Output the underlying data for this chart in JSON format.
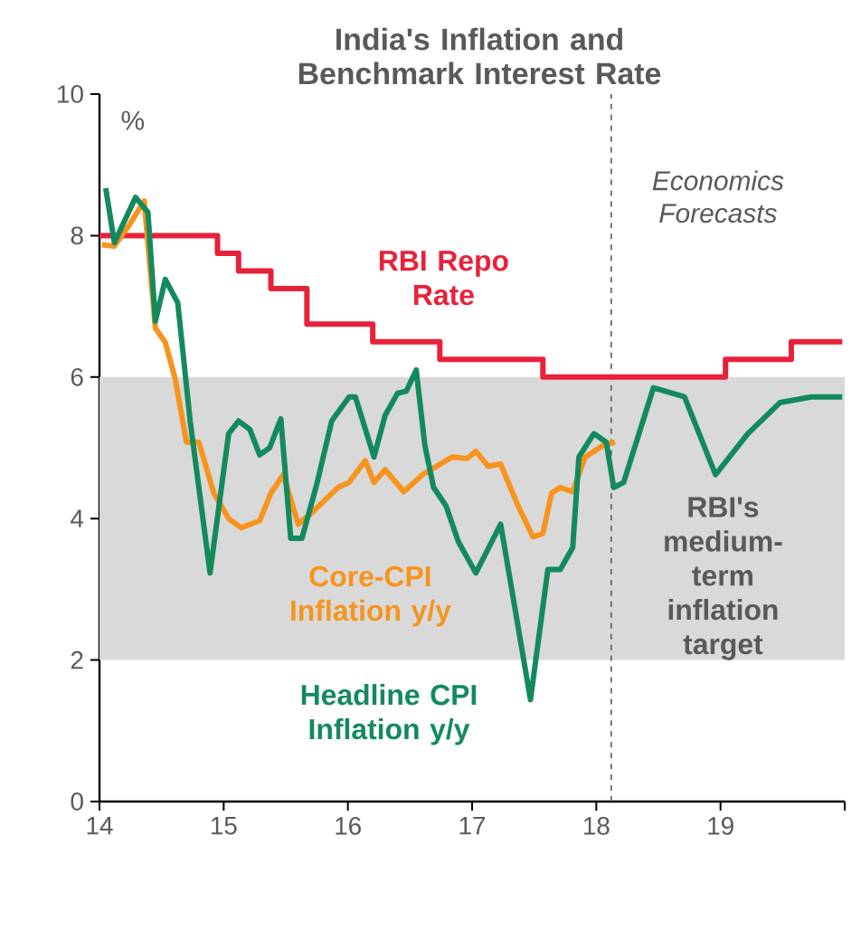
{
  "chart_data": {
    "type": "line",
    "title": "India's Inflation and Benchmark Interest Rate",
    "ylabel": "%",
    "xlim": [
      14,
      20
    ],
    "xticks": [
      14,
      15,
      16,
      17,
      18,
      19,
      {
        "value": 20,
        "label": null
      }
    ],
    "ylim": [
      0,
      10
    ],
    "yticks": [
      0,
      2,
      4,
      6,
      8,
      10
    ],
    "grid": false,
    "legend": false,
    "marker": "none",
    "line_style": "solid",
    "series": [
      {
        "name": "RBI Repo Rate",
        "type": "step",
        "color": "#e8213a",
        "x": [
          14,
          14.95,
          15.12,
          15.38,
          15.67,
          16.2,
          16.74,
          17.57,
          19.04,
          19.57,
          19.98
        ],
        "values": [
          8,
          7.75,
          7.5,
          7.25,
          6.75,
          6.5,
          6.25,
          6,
          6.25,
          6.5,
          6.5
        ]
      },
      {
        "name": "Core-CPI Inflation y/y",
        "color": "#f7941d",
        "x": [
          14.02,
          14.12,
          14.24,
          14.36,
          14.45,
          14.53,
          14.61,
          14.7,
          14.8,
          14.92,
          15.04,
          15.14,
          15.29,
          15.38,
          15.48,
          15.6,
          15.72,
          15.92,
          16.01,
          16.14,
          16.21,
          16.3,
          16.45,
          16.6,
          16.84,
          16.96,
          17.03,
          17.13,
          17.23,
          17.37,
          17.49,
          17.57,
          17.64,
          17.71,
          17.81,
          17.91,
          18.05,
          18.15
        ],
        "values": [
          7.87,
          7.85,
          8.15,
          8.49,
          6.69,
          6.49,
          5.97,
          5.08,
          5.08,
          4.36,
          4.0,
          3.87,
          3.97,
          4.36,
          4.62,
          3.92,
          4.1,
          4.44,
          4.51,
          4.82,
          4.51,
          4.69,
          4.38,
          4.62,
          4.87,
          4.85,
          4.95,
          4.74,
          4.77,
          4.18,
          3.74,
          3.79,
          4.36,
          4.44,
          4.38,
          4.87,
          5.03,
          5.08
        ]
      },
      {
        "name": "Headline CPI Inflation  y/y",
        "color": "#138a5e",
        "x": [
          14.05,
          14.12,
          14.29,
          14.39,
          14.45,
          14.53,
          14.63,
          14.73,
          14.89,
          15.04,
          15.12,
          15.21,
          15.29,
          15.37,
          15.46,
          15.54,
          15.63,
          15.75,
          15.87,
          16.01,
          16.06,
          16.21,
          16.3,
          16.4,
          16.47,
          16.55,
          16.62,
          16.69,
          16.79,
          16.89,
          17.03,
          17.23,
          17.47,
          17.61,
          17.71,
          17.81,
          17.86,
          17.98,
          18.08,
          18.14,
          18.22,
          18.46,
          18.71,
          18.96,
          19.22,
          19.48,
          19.73,
          19.98
        ],
        "values": [
          8.67,
          7.9,
          8.54,
          8.33,
          6.79,
          7.38,
          7.05,
          5.38,
          3.23,
          5.2,
          5.38,
          5.26,
          4.9,
          5.0,
          5.41,
          3.72,
          3.72,
          4.49,
          5.38,
          5.72,
          5.72,
          4.87,
          5.46,
          5.77,
          5.8,
          6.1,
          5.03,
          4.44,
          4.18,
          3.67,
          3.23,
          3.92,
          1.44,
          3.28,
          3.28,
          3.59,
          4.87,
          5.2,
          5.08,
          4.44,
          4.51,
          5.85,
          5.72,
          4.62,
          5.2,
          5.64,
          5.72,
          5.72
        ]
      }
    ],
    "ref_lines": [
      {
        "axis": "x",
        "value": 18.12,
        "label": "Economics Forecasts",
        "color": "#595959",
        "line_style": "dashed"
      }
    ],
    "bands": [
      {
        "axis": "y",
        "from": 2,
        "to": 6,
        "label": "RBI's medium-term inflation target",
        "color": "#d9d9d9"
      }
    ]
  }
}
